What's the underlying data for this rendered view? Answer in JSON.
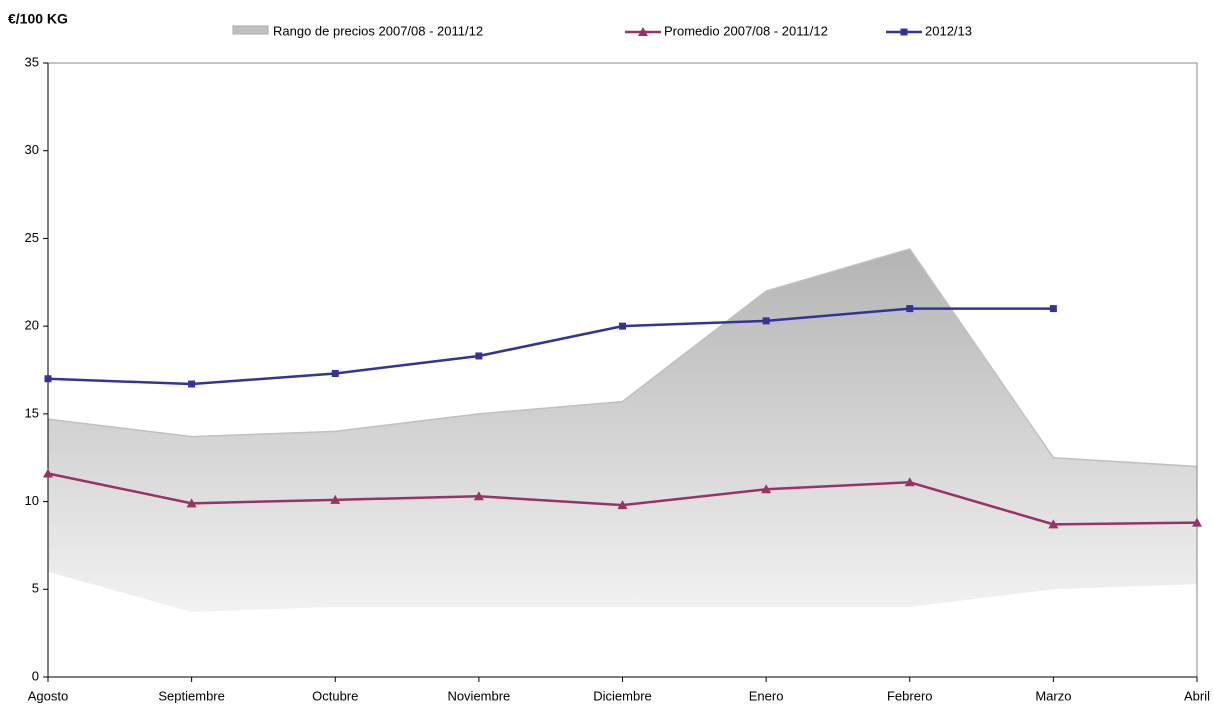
{
  "chart_data": {
    "type": "line",
    "y_label": "€/100 KG",
    "categories": [
      "Agosto",
      "Septiembre",
      "Octubre",
      "Noviembre",
      "Diciembre",
      "Enero",
      "Febrero",
      "Marzo",
      "Abril"
    ],
    "ylim": [
      0,
      35
    ],
    "yticks": [
      0,
      5,
      10,
      15,
      20,
      25,
      30,
      35
    ],
    "grid": false,
    "legend": "top",
    "range": {
      "name": "Rango de precios 2007/08 - 2011/12",
      "color": "#c0c0c0",
      "high": [
        14.7,
        13.7,
        14.0,
        15.0,
        15.7,
        22.0,
        24.4,
        12.5,
        12.0
      ],
      "low": [
        6.0,
        3.7,
        4.0,
        4.0,
        4.0,
        4.0,
        4.0,
        5.0,
        5.3
      ]
    },
    "series": [
      {
        "name": "Promedio 2007/08 - 2011/12",
        "color": "#993366",
        "marker": "triangle",
        "values": [
          11.6,
          9.9,
          10.1,
          10.3,
          9.8,
          10.7,
          11.1,
          8.7,
          8.8
        ]
      },
      {
        "name": "2012/13",
        "color": "#333399",
        "marker": "square",
        "values": [
          17.0,
          16.7,
          17.3,
          18.3,
          20.0,
          20.3,
          21.0,
          21.0,
          null
        ]
      }
    ]
  }
}
